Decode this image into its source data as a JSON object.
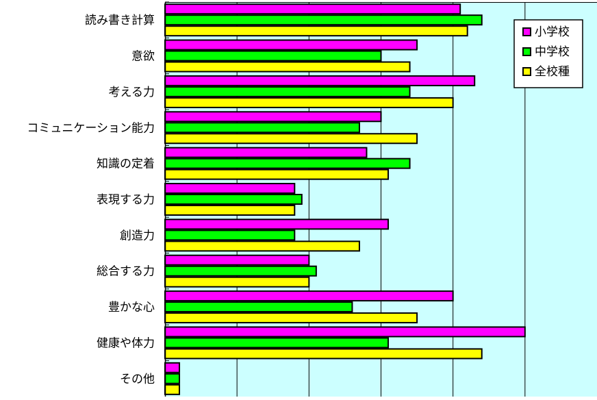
{
  "chart_data": {
    "type": "bar",
    "orientation": "horizontal",
    "categories": [
      "読み書き計算",
      "意欲",
      "考える力",
      "コミュニケーション能力",
      "知識の定着",
      "表現する力",
      "創造力",
      "総合する力",
      "豊かな心",
      "健康や体力",
      "その他"
    ],
    "series": [
      {
        "name": "小学校",
        "color": "#ff00ff",
        "values": [
          41,
          35,
          43,
          30,
          28,
          18,
          31,
          20,
          40,
          50,
          2
        ]
      },
      {
        "name": "中学校",
        "color": "#00ff00",
        "values": [
          44,
          30,
          34,
          27,
          34,
          19,
          18,
          21,
          26,
          31,
          2
        ]
      },
      {
        "name": "全校種",
        "color": "#ffff00",
        "values": [
          42,
          34,
          40,
          35,
          31,
          18,
          27,
          20,
          35,
          44,
          2
        ]
      }
    ],
    "xlim": [
      0,
      60
    ],
    "x_gridlines": [
      10,
      20,
      30,
      40,
      50
    ],
    "x_tick_labels_shown": false,
    "grid": true,
    "plot_background": "#ccffff",
    "legend_position": "top-right"
  }
}
